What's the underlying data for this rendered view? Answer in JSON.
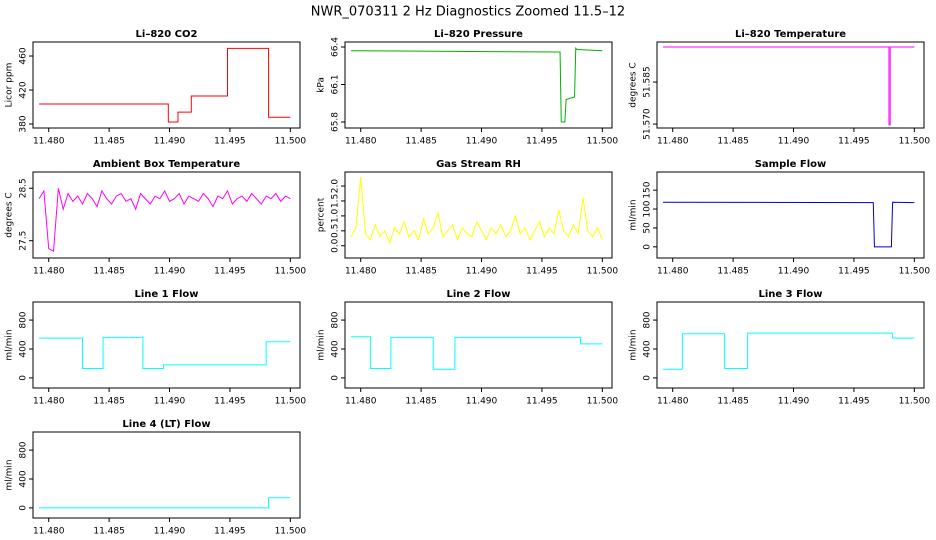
{
  "title": "NWR_070311  2 Hz Diagnostics Zoomed 11.5–12",
  "chart_data": [
    {
      "type": "line",
      "title": "Li–820 CO2",
      "ylabel": "Licor ppm",
      "xlim": [
        11.4787,
        11.5008
      ],
      "xticks": [
        {
          "value": 11.48,
          "label": "11.480"
        },
        {
          "value": 11.485,
          "label": "11.485"
        },
        {
          "value": 11.49,
          "label": "11.490"
        },
        {
          "value": 11.495,
          "label": "11.495"
        },
        {
          "value": 11.5,
          "label": "11.500"
        }
      ],
      "ylim": [
        375.3,
        476.5
      ],
      "yticks": [
        380,
        420,
        460
      ],
      "x": [
        11.4792,
        11.4899,
        11.4899,
        11.4907,
        11.4907,
        11.4918,
        11.4918,
        11.4948,
        11.4948,
        11.4982,
        11.4982,
        11.5
      ],
      "series": [
        {
          "color": "#ff0000",
          "values": [
            403.5,
            403.5,
            382.4,
            382.4,
            394,
            394,
            413,
            413,
            469,
            469,
            388,
            388
          ]
        }
      ]
    },
    {
      "type": "line",
      "title": "Li–820 Pressure",
      "ylabel": "kPa",
      "xlim": [
        11.4787,
        11.5008
      ],
      "xticks": [
        {
          "value": 11.48,
          "label": "11.480"
        },
        {
          "value": 11.485,
          "label": "11.485"
        },
        {
          "value": 11.49,
          "label": "11.490"
        },
        {
          "value": 11.495,
          "label": "11.495"
        },
        {
          "value": 11.5,
          "label": "11.500"
        }
      ],
      "ylim": [
        65.752,
        66.44
      ],
      "yticks": [
        65.8,
        66.1,
        66.4
      ],
      "x": [
        11.4792,
        11.4965,
        11.4966,
        11.4969,
        11.497,
        11.4977,
        11.4978,
        11.4979,
        11.5
      ],
      "series": [
        {
          "color": "#00b000",
          "values": [
            66.37,
            66.36,
            65.8,
            65.8,
            65.98,
            66.0,
            66.39,
            66.38,
            66.37
          ]
        }
      ]
    },
    {
      "type": "line",
      "title": "Li–820 Temperature",
      "ylabel": "degrees C",
      "xlim": [
        11.4787,
        11.5008
      ],
      "xticks": [
        {
          "value": 11.48,
          "label": "11.480"
        },
        {
          "value": 11.485,
          "label": "11.485"
        },
        {
          "value": 11.49,
          "label": "11.490"
        },
        {
          "value": 11.495,
          "label": "11.495"
        },
        {
          "value": 11.5,
          "label": "11.500"
        }
      ],
      "ylim": [
        51.5686,
        51.5993
      ],
      "yticks": [
        {
          "value": 51.57,
          "label": "51.570"
        },
        {
          "value": 51.585,
          "label": "51.585"
        }
      ],
      "x": [
        11.4792,
        11.4979,
        11.4979,
        11.498,
        11.498,
        11.5
      ],
      "series": [
        {
          "color": "#ff00ff",
          "values": [
            51.5975,
            51.5975,
            51.5697,
            51.5697,
            51.5975,
            51.5975
          ]
        }
      ]
    },
    {
      "type": "line",
      "title": "Ambient Box Temperature",
      "ylabel": "degrees C",
      "xlim": [
        11.4787,
        11.5008
      ],
      "xticks": [
        {
          "value": 11.48,
          "label": "11.480"
        },
        {
          "value": 11.485,
          "label": "11.485"
        },
        {
          "value": 11.49,
          "label": "11.490"
        },
        {
          "value": 11.495,
          "label": "11.495"
        },
        {
          "value": 11.5,
          "label": "11.500"
        }
      ],
      "ylim": [
        27.17,
        28.81
      ],
      "yticks": [
        27.5,
        28.5
      ],
      "x": [
        11.4792,
        11.4796,
        11.48,
        11.4804,
        11.4808,
        11.4812,
        11.4816,
        11.482,
        11.4824,
        11.4828,
        11.4832,
        11.4836,
        11.484,
        11.4844,
        11.4848,
        11.4852,
        11.4856,
        11.486,
        11.4864,
        11.4868,
        11.4872,
        11.4876,
        11.488,
        11.4884,
        11.4888,
        11.4892,
        11.4896,
        11.49,
        11.4904,
        11.4908,
        11.4912,
        11.4916,
        11.492,
        11.4924,
        11.4928,
        11.4932,
        11.4936,
        11.494,
        11.4944,
        11.4948,
        11.4952,
        11.4956,
        11.496,
        11.4964,
        11.4968,
        11.4972,
        11.4976,
        11.498,
        11.4984,
        11.4988,
        11.4992,
        11.4996,
        11.5
      ],
      "series": [
        {
          "color": "#ff00ff",
          "values": [
            28.3,
            28.45,
            27.35,
            27.3,
            28.5,
            28.1,
            28.4,
            28.25,
            28.35,
            28.2,
            28.4,
            28.3,
            28.15,
            28.45,
            28.3,
            28.2,
            28.35,
            28.4,
            28.25,
            28.3,
            28.1,
            28.4,
            28.3,
            28.2,
            28.35,
            28.3,
            28.45,
            28.25,
            28.3,
            28.4,
            28.2,
            28.35,
            28.3,
            28.25,
            28.4,
            28.3,
            28.15,
            28.35,
            28.3,
            28.45,
            28.2,
            28.3,
            28.35,
            28.25,
            28.4,
            28.3,
            28.2,
            28.35,
            28.3,
            28.4,
            28.25,
            28.35,
            28.3
          ]
        }
      ]
    },
    {
      "type": "line",
      "title": "Gas Stream RH",
      "ylabel": "percent",
      "xlim": [
        11.4787,
        11.5008
      ],
      "xticks": [
        {
          "value": 11.48,
          "label": "11.480"
        },
        {
          "value": 11.485,
          "label": "11.485"
        },
        {
          "value": 11.49,
          "label": "11.490"
        },
        {
          "value": 11.495,
          "label": "11.495"
        },
        {
          "value": 11.5,
          "label": "11.500"
        }
      ],
      "ylim": [
        -0.41,
        2.47
      ],
      "yticks": [
        {
          "value": 0,
          "label": "0.0"
        },
        0.5,
        {
          "value": 1,
          "label": "1.0"
        },
        1.5,
        {
          "value": 2,
          "label": "2.0"
        }
      ],
      "x": [
        11.4792,
        11.4796,
        11.48,
        11.4804,
        11.4808,
        11.4812,
        11.4816,
        11.482,
        11.4824,
        11.4828,
        11.4832,
        11.4836,
        11.484,
        11.4844,
        11.4848,
        11.4852,
        11.4856,
        11.486,
        11.4864,
        11.4868,
        11.4872,
        11.4876,
        11.488,
        11.4884,
        11.4888,
        11.4892,
        11.4896,
        11.49,
        11.4904,
        11.4908,
        11.4912,
        11.4916,
        11.492,
        11.4924,
        11.4928,
        11.4932,
        11.4936,
        11.494,
        11.4944,
        11.4948,
        11.4952,
        11.4956,
        11.496,
        11.4964,
        11.4968,
        11.4972,
        11.4976,
        11.498,
        11.4984,
        11.4988,
        11.4992,
        11.4996,
        11.5
      ],
      "series": [
        {
          "color": "#ffff00",
          "values": [
            0.3,
            0.6,
            2.3,
            0.4,
            0.2,
            0.7,
            0.3,
            0.5,
            0.1,
            0.6,
            0.4,
            0.8,
            0.3,
            0.5,
            0.2,
            0.9,
            0.4,
            0.6,
            1.1,
            0.3,
            0.5,
            0.7,
            0.2,
            0.6,
            0.4,
            0.3,
            0.8,
            0.5,
            0.2,
            0.6,
            0.4,
            0.7,
            0.3,
            0.5,
            1.0,
            0.4,
            0.6,
            0.2,
            0.5,
            0.8,
            0.3,
            0.6,
            0.4,
            1.2,
            0.5,
            0.3,
            0.7,
            0.4,
            1.6,
            0.5,
            0.3,
            0.6,
            0.2
          ]
        }
      ]
    },
    {
      "type": "line",
      "title": "Sample Flow",
      "ylabel": "ml/min",
      "xlim": [
        11.4787,
        11.5008
      ],
      "xticks": [
        {
          "value": 11.48,
          "label": "11.480"
        },
        {
          "value": 11.485,
          "label": "11.485"
        },
        {
          "value": 11.49,
          "label": "11.490"
        },
        {
          "value": 11.495,
          "label": "11.495"
        },
        {
          "value": 11.5,
          "label": "11.500"
        }
      ],
      "ylim": [
        -29.5,
        198
      ],
      "yticks": [
        0,
        50,
        100,
        150
      ],
      "x": [
        11.4792,
        11.4966,
        11.4967,
        11.4981,
        11.4982,
        11.5
      ],
      "series": [
        {
          "color": "#0000cc",
          "values": [
            118,
            117,
            0,
            0,
            118,
            117
          ]
        }
      ]
    },
    {
      "type": "line",
      "title": "Line 1 Flow",
      "ylabel": "ml/min",
      "xlim": [
        11.4787,
        11.5008
      ],
      "xticks": [
        {
          "value": 11.48,
          "label": "11.480"
        },
        {
          "value": 11.485,
          "label": "11.485"
        },
        {
          "value": 11.49,
          "label": "11.490"
        },
        {
          "value": 11.495,
          "label": "11.495"
        },
        {
          "value": 11.5,
          "label": "11.500"
        }
      ],
      "ylim": [
        -140,
        1050
      ],
      "yticks": [
        0,
        400,
        800
      ],
      "x": [
        11.4792,
        11.4828,
        11.4828,
        11.4845,
        11.4845,
        11.4878,
        11.4878,
        11.4895,
        11.4895,
        11.498,
        11.498,
        11.5
      ],
      "series": [
        {
          "color": "#00ffff",
          "values": [
            550,
            550,
            130,
            130,
            560,
            560,
            130,
            130,
            180,
            180,
            500,
            500
          ]
        }
      ]
    },
    {
      "type": "line",
      "title": "Line 2 Flow",
      "ylabel": "ml/min",
      "xlim": [
        11.4787,
        11.5008
      ],
      "xticks": [
        {
          "value": 11.48,
          "label": "11.480"
        },
        {
          "value": 11.485,
          "label": "11.485"
        },
        {
          "value": 11.49,
          "label": "11.490"
        },
        {
          "value": 11.495,
          "label": "11.495"
        },
        {
          "value": 11.5,
          "label": "11.500"
        }
      ],
      "ylim": [
        -140,
        1050
      ],
      "yticks": [
        0,
        400,
        800
      ],
      "x": [
        11.4792,
        11.4808,
        11.4808,
        11.4825,
        11.4825,
        11.486,
        11.486,
        11.4878,
        11.4878,
        11.4982,
        11.4982,
        11.5
      ],
      "series": [
        {
          "color": "#00ffff",
          "values": [
            570,
            570,
            130,
            130,
            560,
            560,
            120,
            120,
            560,
            560,
            470,
            470
          ]
        }
      ]
    },
    {
      "type": "line",
      "title": "Line 3 Flow",
      "ylabel": "ml/min",
      "xlim": [
        11.4787,
        11.5008
      ],
      "xticks": [
        {
          "value": 11.48,
          "label": "11.480"
        },
        {
          "value": 11.485,
          "label": "11.485"
        },
        {
          "value": 11.49,
          "label": "11.490"
        },
        {
          "value": 11.495,
          "label": "11.495"
        },
        {
          "value": 11.5,
          "label": "11.500"
        }
      ],
      "ylim": [
        -140,
        1050
      ],
      "yticks": [
        0,
        400,
        800
      ],
      "x": [
        11.4792,
        11.4808,
        11.4808,
        11.4843,
        11.4843,
        11.4862,
        11.4862,
        11.4982,
        11.4982,
        11.5
      ],
      "series": [
        {
          "color": "#00ffff",
          "values": [
            120,
            120,
            610,
            610,
            130,
            130,
            620,
            620,
            550,
            550
          ]
        }
      ]
    },
    {
      "type": "line",
      "title": "Line 4 (LT) Flow",
      "ylabel": "ml/min",
      "xlim": [
        11.4787,
        11.5008
      ],
      "xticks": [
        {
          "value": 11.48,
          "label": "11.480"
        },
        {
          "value": 11.485,
          "label": "11.485"
        },
        {
          "value": 11.49,
          "label": "11.490"
        },
        {
          "value": 11.495,
          "label": "11.495"
        },
        {
          "value": 11.5,
          "label": "11.500"
        }
      ],
      "ylim": [
        -140,
        1050
      ],
      "yticks": [
        0,
        400,
        800
      ],
      "x": [
        11.4792,
        11.4982,
        11.4982,
        11.5
      ],
      "series": [
        {
          "color": "#00ffff",
          "values": [
            0,
            0,
            140,
            140
          ]
        }
      ]
    }
  ]
}
